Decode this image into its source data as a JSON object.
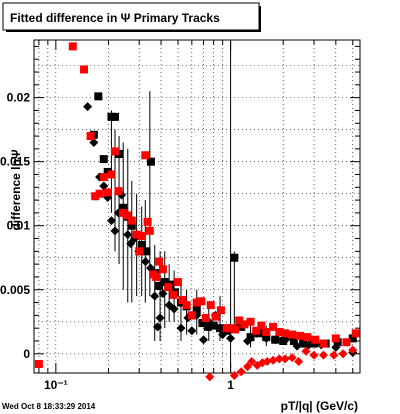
{
  "title": "Fitted difference in  Ψ   Primary Tracks",
  "xlabel": "pT/|q| (GeV/c)",
  "ylabel": "difference lnΨ",
  "timestamp": "Wed Oct  8 18:33:29 2014",
  "chart_data": {
    "type": "scatter",
    "title": "Fitted difference in  Ψ   Primary Tracks",
    "xlabel": "pT/|q| (GeV/c)",
    "ylabel": "difference lnΨ",
    "x_scale": "log",
    "xlim": [
      0.075,
      5.5
    ],
    "ylim": [
      -0.0015,
      0.0245
    ],
    "grid": true,
    "x_ticks": [
      {
        "value": 0.1,
        "label": "10⁻¹"
      },
      {
        "value": 1,
        "label": "1"
      }
    ],
    "y_ticks": [
      {
        "value": 0,
        "label": "0"
      },
      {
        "value": 0.005,
        "label": "0.005"
      },
      {
        "value": 0.01,
        "label": "0.01"
      },
      {
        "value": 0.015,
        "label": "0.015"
      },
      {
        "value": 0.02,
        "label": "0.02"
      }
    ],
    "series": [
      {
        "marker": "diamond",
        "color": "#000000",
        "points": [
          [
            0.152,
            0.0193
          ],
          [
            0.165,
            0.0165
          ],
          [
            0.178,
            0.0138
          ],
          [
            0.188,
            0.0131
          ],
          [
            0.198,
            0.0122
          ],
          [
            0.208,
            0.0104
          ],
          [
            0.218,
            0.0096
          ],
          [
            0.228,
            0.011
          ],
          [
            0.238,
            0.0124
          ],
          [
            0.258,
            0.0093
          ],
          [
            0.268,
            0.0086
          ],
          [
            0.282,
            0.009
          ],
          [
            0.298,
            0.008
          ],
          [
            0.312,
            0.008
          ],
          [
            0.326,
            0.0072
          ],
          [
            0.348,
            0.0067
          ],
          [
            0.368,
            0.0045
          ],
          [
            0.382,
            0.0021
          ],
          [
            0.395,
            0.0028
          ],
          [
            0.41,
            0.0047
          ],
          [
            0.445,
            0.0038
          ],
          [
            0.475,
            0.0035
          ],
          [
            0.52,
            0.002
          ],
          [
            0.57,
            0.0028
          ],
          [
            0.6,
            0.0018
          ],
          [
            0.64,
            0.003
          ],
          [
            0.7,
            0.0011
          ],
          [
            0.75,
            0.0025
          ],
          [
            0.82,
            0.003
          ],
          [
            0.9,
            0.0015
          ],
          [
            1.0,
            0.0012
          ],
          [
            1.1,
            0.0021
          ],
          [
            1.25,
            0.001
          ],
          [
            1.4,
            0.0016
          ],
          [
            1.6,
            0.0012
          ],
          [
            1.8,
            0.0011
          ],
          [
            2.1,
            0.0012
          ],
          [
            2.4,
            0.0006
          ],
          [
            2.8,
            0.0007
          ],
          [
            3.3,
            0.0007
          ],
          [
            4.0,
            0.0005
          ],
          [
            5.0,
            0.0001
          ]
        ]
      },
      {
        "marker": "square",
        "color": "#000000",
        "points": [
          [
            0.165,
            0.0171
          ],
          [
            0.175,
            0.0201
          ],
          [
            0.188,
            0.0152
          ],
          [
            0.198,
            0.0142
          ],
          [
            0.208,
            0.0185
          ],
          [
            0.218,
            0.0185
          ],
          [
            0.23,
            0.0156
          ],
          [
            0.243,
            0.0114
          ],
          [
            0.258,
            0.0107
          ],
          [
            0.272,
            0.01
          ],
          [
            0.29,
            0.0093
          ],
          [
            0.31,
            0.0085
          ],
          [
            0.33,
            0.008
          ],
          [
            0.35,
            0.015
          ],
          [
            0.37,
            0.0063
          ],
          [
            0.39,
            0.0053
          ],
          [
            0.42,
            0.0056
          ],
          [
            0.45,
            0.0054
          ],
          [
            0.48,
            0.0048
          ],
          [
            0.52,
            0.004
          ],
          [
            0.56,
            0.0037
          ],
          [
            0.6,
            0.003
          ],
          [
            0.64,
            0.0034
          ],
          [
            0.69,
            0.0024
          ],
          [
            0.74,
            0.0021
          ],
          [
            0.8,
            0.0022
          ],
          [
            0.87,
            0.002
          ],
          [
            0.95,
            0.0018
          ],
          [
            1.05,
            0.0075
          ],
          [
            1.15,
            0.0021
          ],
          [
            1.3,
            0.0013
          ],
          [
            1.45,
            0.0016
          ],
          [
            1.6,
            0.0013
          ],
          [
            1.8,
            0.0011
          ],
          [
            2.0,
            0.001
          ],
          [
            2.3,
            0.001
          ],
          [
            2.6,
            0.0008
          ],
          [
            3.0,
            0.0008
          ],
          [
            3.5,
            0.0008
          ],
          [
            4.1,
            0.0009
          ],
          [
            5.0,
            0.0012
          ]
        ]
      },
      {
        "marker": "square",
        "color": "#ff0000",
        "points": [
          [
            0.08,
            -0.0008
          ],
          [
            0.125,
            0.024
          ],
          [
            0.145,
            0.0222
          ],
          [
            0.158,
            0.017
          ],
          [
            0.168,
            0.0123
          ],
          [
            0.178,
            0.0125
          ],
          [
            0.188,
            0.0138
          ],
          [
            0.198,
            0.0126
          ],
          [
            0.208,
            0.014
          ],
          [
            0.218,
            0.0158
          ],
          [
            0.228,
            0.0127
          ],
          [
            0.242,
            0.011
          ],
          [
            0.256,
            0.0108
          ],
          [
            0.272,
            0.0104
          ],
          [
            0.29,
            0.0093
          ],
          [
            0.3,
            0.008
          ],
          [
            0.31,
            0.0092
          ],
          [
            0.325,
            0.0155
          ],
          [
            0.335,
            0.0103
          ],
          [
            0.345,
            0.0096
          ],
          [
            0.36,
            0.0062
          ],
          [
            0.375,
            0.006
          ],
          [
            0.39,
            0.0072
          ],
          [
            0.41,
            0.0066
          ],
          [
            0.44,
            0.0052
          ],
          [
            0.47,
            0.0046
          ],
          [
            0.5,
            0.0056
          ],
          [
            0.53,
            0.0042
          ],
          [
            0.56,
            0.0038
          ],
          [
            0.6,
            0.003
          ],
          [
            0.64,
            0.004
          ],
          [
            0.68,
            0.0041
          ],
          [
            0.72,
            0.0028
          ],
          [
            0.77,
            0.0038
          ],
          [
            0.82,
            0.0029
          ],
          [
            0.88,
            0.0034
          ],
          [
            0.95,
            0.002
          ],
          [
            1.0,
            0.002
          ],
          [
            1.06,
            0.0019
          ],
          [
            1.12,
            0.0026
          ],
          [
            1.2,
            0.0023
          ],
          [
            1.3,
            0.0025
          ],
          [
            1.4,
            0.0018
          ],
          [
            1.5,
            0.0022
          ],
          [
            1.6,
            0.0017
          ],
          [
            1.75,
            0.0021
          ],
          [
            1.9,
            0.0017
          ],
          [
            2.05,
            0.0016
          ],
          [
            2.25,
            0.0015
          ],
          [
            2.5,
            0.0014
          ],
          [
            2.75,
            0.0013
          ],
          [
            3.05,
            0.0011
          ],
          [
            3.4,
            0.0008
          ],
          [
            4.0,
            0.0012
          ],
          [
            4.6,
            0.0009
          ],
          [
            5.2,
            0.0016
          ]
        ]
      },
      {
        "marker": "diamond",
        "color": "#ff0000",
        "points": [
          [
            0.76,
            -0.0018
          ],
          [
            1.05,
            -0.0017
          ],
          [
            1.15,
            -0.0014
          ],
          [
            1.25,
            -0.001
          ],
          [
            1.32,
            -0.0006
          ],
          [
            1.42,
            -0.0009
          ],
          [
            1.52,
            -0.0007
          ],
          [
            1.62,
            -0.0006
          ],
          [
            1.75,
            -0.0005
          ],
          [
            1.9,
            -0.0004
          ],
          [
            2.05,
            -0.0004
          ],
          [
            2.25,
            -0.0003
          ],
          [
            2.45,
            -0.0006
          ],
          [
            2.7,
            0.0002
          ],
          [
            3.0,
            -0.0001
          ],
          [
            3.4,
            -0.0001
          ],
          [
            3.9,
            -0.0001
          ],
          [
            4.4,
            0.0
          ],
          [
            5.0,
            0.0003
          ]
        ]
      }
    ],
    "error_bars": [
      {
        "x": 0.208,
        "low": 0.011,
        "high": 0.019
      },
      {
        "x": 0.218,
        "low": 0.008,
        "high": 0.0175
      },
      {
        "x": 0.23,
        "low": 0.007,
        "high": 0.017
      },
      {
        "x": 0.243,
        "low": 0.005,
        "high": 0.0165
      },
      {
        "x": 0.258,
        "low": 0.004,
        "high": 0.016
      },
      {
        "x": 0.272,
        "low": 0.004,
        "high": 0.0135
      },
      {
        "x": 0.29,
        "low": 0.0045,
        "high": 0.0125
      },
      {
        "x": 0.31,
        "low": 0.0045,
        "high": 0.0115
      },
      {
        "x": 0.325,
        "low": 0.004,
        "high": 0.012
      },
      {
        "x": 0.345,
        "low": 0.0045,
        "high": 0.0205
      },
      {
        "x": 0.368,
        "low": 0.001,
        "high": 0.0085
      },
      {
        "x": 0.395,
        "low": 0.001,
        "high": 0.008
      },
      {
        "x": 0.42,
        "low": 0.002,
        "high": 0.008
      },
      {
        "x": 0.445,
        "low": 0.0025,
        "high": 0.007
      },
      {
        "x": 0.475,
        "low": 0.0025,
        "high": 0.0065
      },
      {
        "x": 0.52,
        "low": 0.001,
        "high": 0.0055
      },
      {
        "x": 0.56,
        "low": 0.0015,
        "high": 0.005
      },
      {
        "x": 0.64,
        "low": 0.0015,
        "high": 0.005
      },
      {
        "x": 0.75,
        "low": 0.001,
        "high": 0.004
      },
      {
        "x": 0.87,
        "low": 0.001,
        "high": 0.0045
      },
      {
        "x": 1.05,
        "low": 0.002,
        "high": 0.008
      },
      {
        "x": 1.3,
        "low": 0.0005,
        "high": 0.0025
      },
      {
        "x": 1.6,
        "low": 0.0006,
        "high": 0.0022
      }
    ]
  }
}
